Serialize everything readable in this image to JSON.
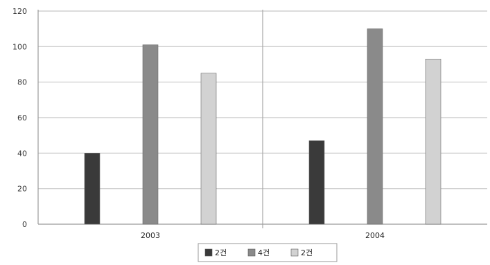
{
  "chart_data": {
    "type": "bar",
    "categories": [
      "2003",
      "2004"
    ],
    "series": [
      {
        "name": "2건",
        "values": [
          40,
          47
        ],
        "color": "#3a3a3a"
      },
      {
        "name": "4건",
        "values": [
          101,
          110
        ],
        "color": "#8a8a8a"
      },
      {
        "name": "2건",
        "values": [
          85,
          93
        ],
        "color": "#d2d2d2"
      }
    ],
    "ylim": [
      0,
      120
    ],
    "yticks": [
      0,
      20,
      40,
      60,
      80,
      100,
      120
    ],
    "grid": true,
    "legend": "bottom-center",
    "title": "",
    "xlabel": "",
    "ylabel": ""
  }
}
